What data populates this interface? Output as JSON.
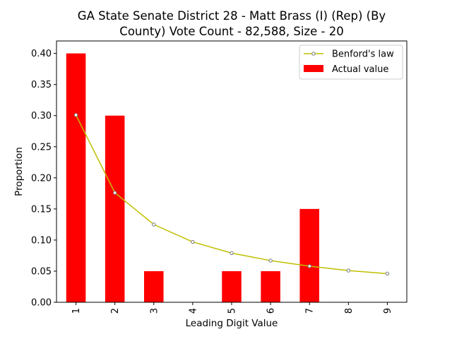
{
  "chart_data": {
    "type": "bar",
    "title_lines": [
      "GA State Senate District 28 - Matt Brass (I) (Rep) (By",
      "County) Vote Count - 82,588, Size - 20"
    ],
    "xlabel": "Leading Digit Value",
    "ylabel": "Proportion",
    "categories": [
      "1",
      "2",
      "3",
      "4",
      "5",
      "6",
      "7",
      "8",
      "9"
    ],
    "ylim": [
      0,
      0.42
    ],
    "yticks": [
      "0.00",
      "0.05",
      "0.10",
      "0.15",
      "0.20",
      "0.25",
      "0.30",
      "0.35",
      "0.40"
    ],
    "grid": false,
    "legend_position": "top-right",
    "series": [
      {
        "name": "Benford's law",
        "kind": "line",
        "color": "#bfbf00",
        "values": [
          0.301,
          0.176,
          0.125,
          0.097,
          0.079,
          0.067,
          0.058,
          0.051,
          0.046
        ]
      },
      {
        "name": "Actual value",
        "kind": "bar",
        "color": "#ff0000",
        "values": [
          0.4,
          0.3,
          0.05,
          0.0,
          0.05,
          0.05,
          0.15,
          0.0,
          0.0
        ]
      }
    ]
  }
}
